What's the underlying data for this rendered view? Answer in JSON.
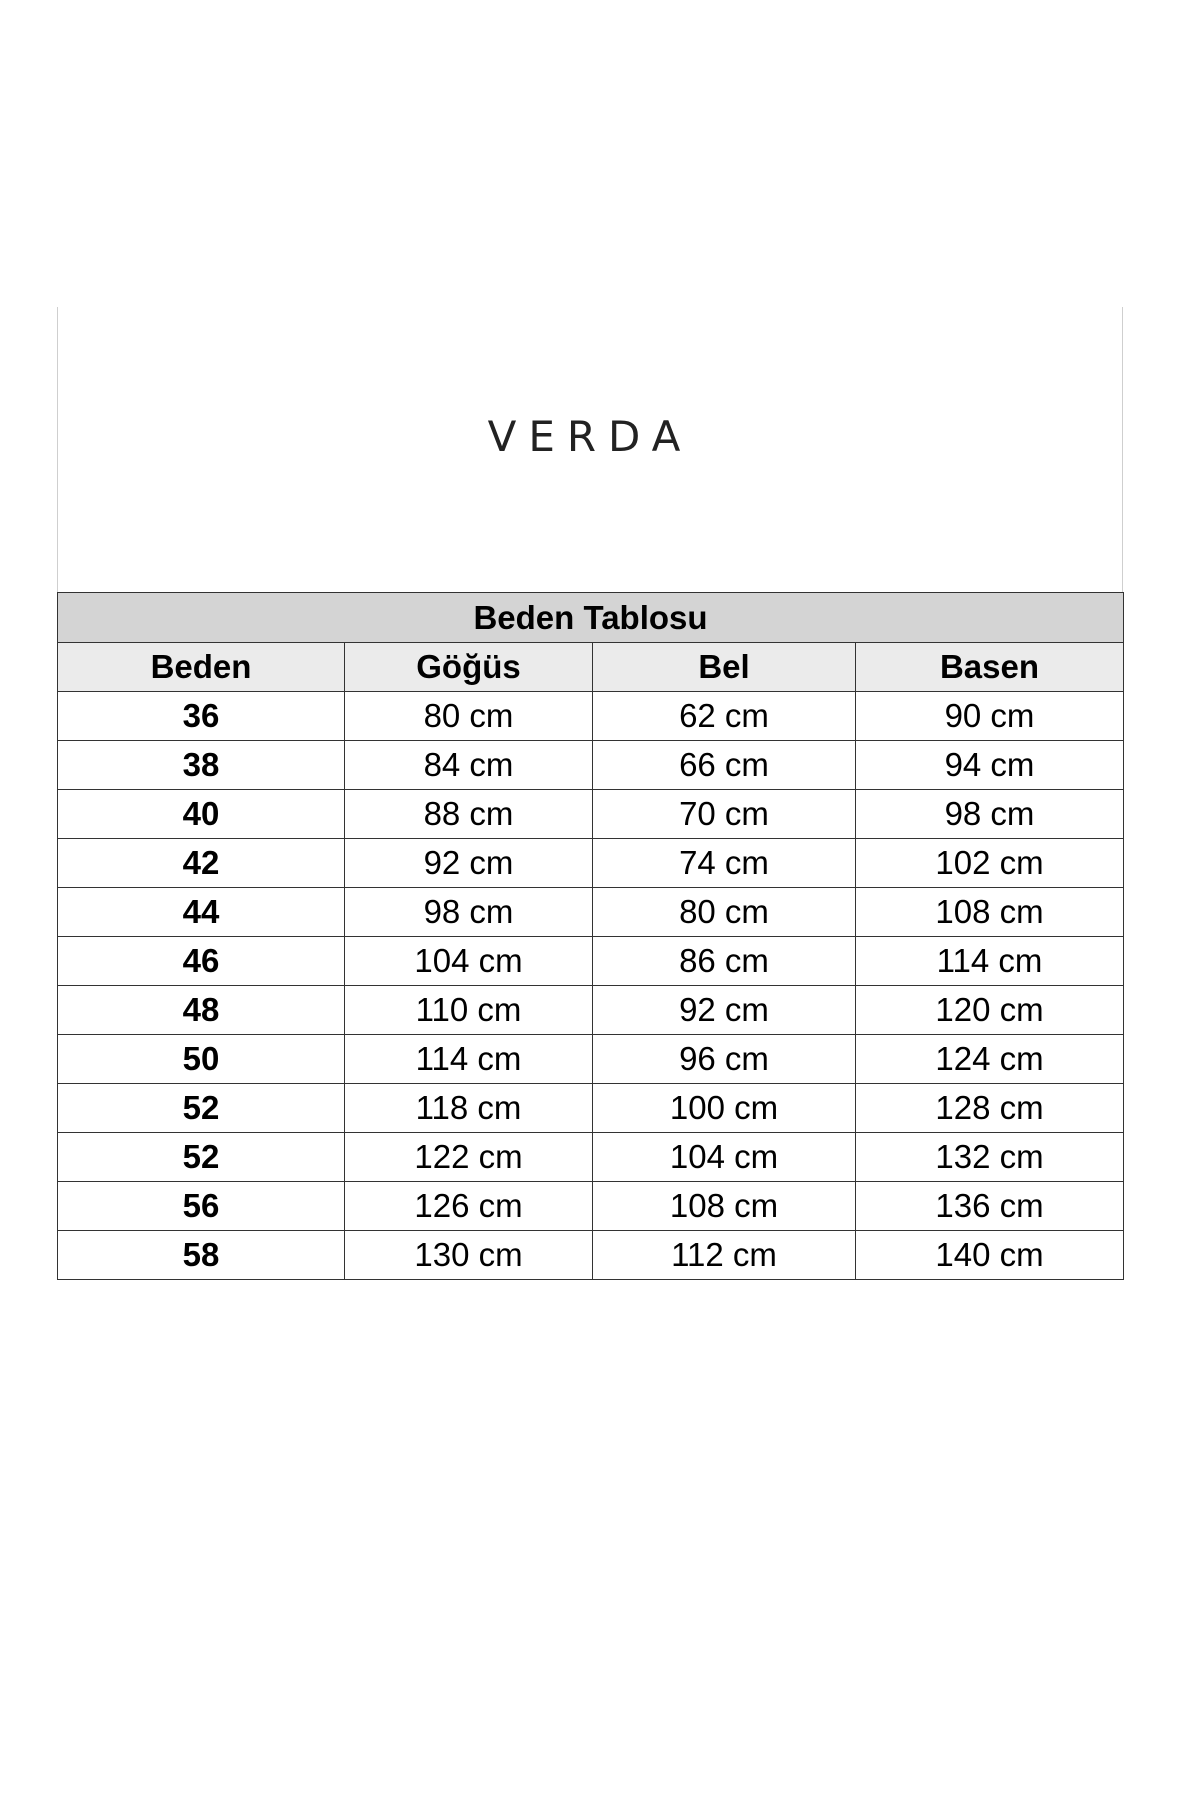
{
  "brand": {
    "logo_text": "VERDA"
  },
  "table": {
    "title": "Beden Tablosu",
    "headers": [
      "Beden",
      "Göğüs",
      "Bel",
      "Basen"
    ],
    "rows": [
      [
        "36",
        "80 cm",
        "62 cm",
        "90 cm"
      ],
      [
        "38",
        "84 cm",
        "66 cm",
        "94 cm"
      ],
      [
        "40",
        "88 cm",
        "70 cm",
        "98 cm"
      ],
      [
        "42",
        "92 cm",
        "74 cm",
        "102 cm"
      ],
      [
        "44",
        "98 cm",
        "80 cm",
        "108 cm"
      ],
      [
        "46",
        "104 cm",
        "86 cm",
        "114 cm"
      ],
      [
        "48",
        "110 cm",
        "92 cm",
        "120 cm"
      ],
      [
        "50",
        "114 cm",
        "96 cm",
        "124 cm"
      ],
      [
        "52",
        "118 cm",
        "100 cm",
        "128 cm"
      ],
      [
        "52",
        "122 cm",
        "104 cm",
        "132 cm"
      ],
      [
        "56",
        "126 cm",
        "108 cm",
        "136 cm"
      ],
      [
        "58",
        "130 cm",
        "112 cm",
        "140 cm"
      ]
    ]
  },
  "colors": {
    "title_bg": "#d4d4d4",
    "header_bg": "#ebebeb",
    "border": "#333333"
  }
}
